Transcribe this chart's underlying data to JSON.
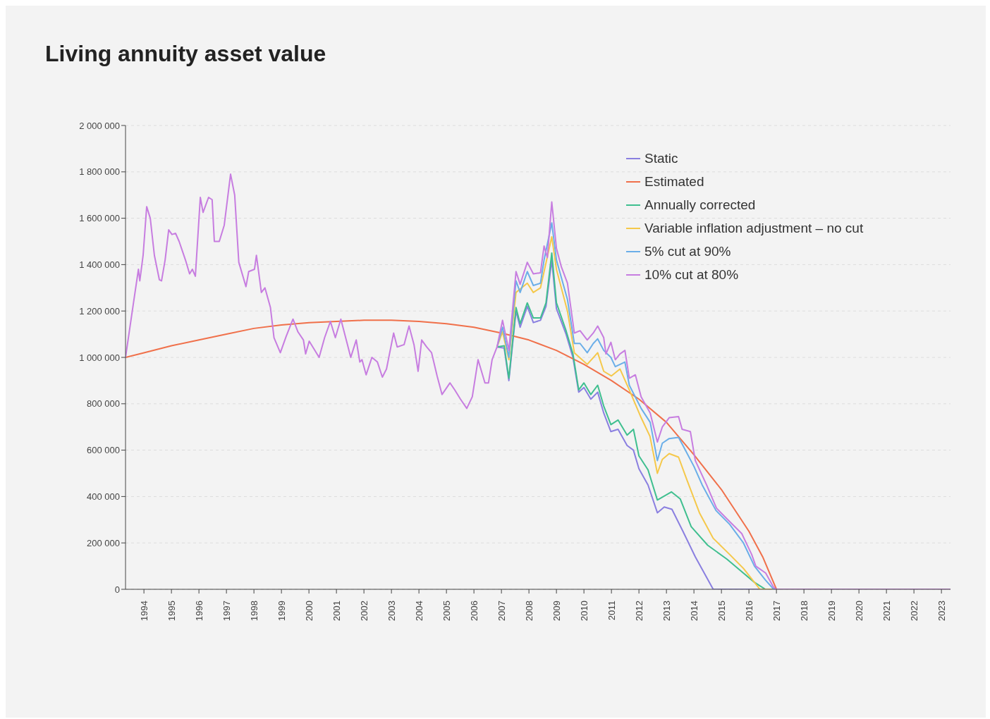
{
  "chart_data": {
    "type": "line",
    "title": "Living annuity asset value",
    "xlim": [
      1993.33,
      2023.33
    ],
    "xticks": [
      1994,
      1995,
      1996,
      1997,
      1998,
      1999,
      2000,
      2001,
      2002,
      2003,
      2004,
      2005,
      2006,
      2007,
      2008,
      2009,
      2010,
      2011,
      2012,
      2013,
      2014,
      2015,
      2016,
      2017,
      2018,
      2019,
      2020,
      2021,
      2022,
      2023
    ],
    "ylim": [
      0,
      2000000
    ],
    "yticks": [
      0,
      {
        "value": 200000,
        "label": "200 000"
      },
      {
        "value": 400000,
        "label": "400 000"
      },
      {
        "value": 600000,
        "label": "600 000"
      },
      {
        "value": 800000,
        "label": "800 000"
      },
      {
        "value": 1000000,
        "label": "1 000 000"
      },
      {
        "value": 1200000,
        "label": "1 200 000"
      },
      {
        "value": 1400000,
        "label": "1 400 000"
      },
      {
        "value": 1600000,
        "label": "1 600 000"
      },
      {
        "value": 1800000,
        "label": "1 800 000"
      },
      {
        "value": 2000000,
        "label": "2 000 000"
      }
    ],
    "grid": "y",
    "legend": "top right",
    "marker": "none",
    "line_style": "solid",
    "series": [
      {
        "name": "Static",
        "color": "#8a7fe0",
        "x": [
          2006.84,
          2007.1,
          2007.27,
          2007.53,
          2007.68,
          2007.94,
          2008.16,
          2008.42,
          2008.62,
          2008.83,
          2009.0,
          2009.35,
          2009.6,
          2009.81,
          2010.0,
          2010.25,
          2010.5,
          2010.72,
          2010.98,
          2011.24,
          2011.57,
          2011.8,
          2012.0,
          2012.33,
          2012.67,
          2012.92,
          2013.2,
          2013.6,
          2014.05,
          2014.7,
          2023.33
        ],
        "values": [
          1045000,
          1040000,
          900000,
          1200000,
          1130000,
          1220000,
          1150000,
          1160000,
          1220000,
          1420000,
          1210000,
          1100000,
          1000000,
          850000,
          870000,
          820000,
          850000,
          760000,
          680000,
          690000,
          620000,
          600000,
          520000,
          450000,
          330000,
          355000,
          345000,
          250000,
          140000,
          0,
          0
        ]
      },
      {
        "name": "Estimated",
        "color": "#f0704a",
        "x": [
          1993.33,
          1994,
          1995,
          1996,
          1997,
          1998,
          1999,
          2000,
          2001,
          2002,
          2003,
          2004,
          2005,
          2006,
          2007,
          2008,
          2009,
          2010,
          2011,
          2012,
          2013,
          2014,
          2015,
          2016,
          2016.5,
          2017,
          2023.33
        ],
        "values": [
          1000000,
          1020000,
          1050000,
          1075000,
          1100000,
          1125000,
          1140000,
          1150000,
          1155000,
          1160000,
          1160000,
          1155000,
          1145000,
          1130000,
          1105000,
          1075000,
          1030000,
          970000,
          900000,
          820000,
          720000,
          580000,
          430000,
          250000,
          140000,
          0,
          0
        ]
      },
      {
        "name": "Annually corrected",
        "color": "#3fbf8f",
        "x": [
          2006.84,
          2007.1,
          2007.27,
          2007.53,
          2007.68,
          2007.94,
          2008.16,
          2008.42,
          2008.62,
          2008.83,
          2009.0,
          2009.35,
          2009.6,
          2009.81,
          2010.0,
          2010.25,
          2010.5,
          2010.72,
          2010.98,
          2011.24,
          2011.57,
          2011.8,
          2012.0,
          2012.33,
          2012.67,
          2013.18,
          2013.5,
          2013.9,
          2014.5,
          2015.2,
          2015.7,
          2016.2,
          2016.6,
          2023.33
        ],
        "values": [
          1045000,
          1050000,
          910000,
          1215000,
          1145000,
          1235000,
          1170000,
          1170000,
          1235000,
          1450000,
          1235000,
          1115000,
          1015000,
          860000,
          890000,
          840000,
          880000,
          790000,
          710000,
          730000,
          665000,
          690000,
          575000,
          515000,
          385000,
          420000,
          390000,
          270000,
          190000,
          130000,
          80000,
          30000,
          0,
          0
        ]
      },
      {
        "name": "Variable inflation adjustment – no cut",
        "color": "#f5c84a",
        "x": [
          2006.84,
          2007.04,
          2007.27,
          2007.53,
          2007.94,
          2008.16,
          2008.42,
          2008.83,
          2009.0,
          2009.4,
          2009.65,
          2010.12,
          2010.5,
          2010.72,
          2011.0,
          2011.31,
          2011.65,
          2012.08,
          2012.4,
          2012.67,
          2012.85,
          2013.1,
          2013.44,
          2013.75,
          2014.2,
          2014.7,
          2015.3,
          2015.8,
          2016.2,
          2016.4,
          2023.33
        ],
        "values": [
          1045000,
          1110000,
          990000,
          1280000,
          1320000,
          1280000,
          1300000,
          1520000,
          1380000,
          1200000,
          1020000,
          970000,
          1020000,
          940000,
          920000,
          950000,
          860000,
          740000,
          660000,
          500000,
          560000,
          585000,
          570000,
          470000,
          330000,
          220000,
          150000,
          90000,
          30000,
          0,
          0
        ]
      },
      {
        "name": "5% cut at 90%",
        "color": "#6aaee8",
        "x": [
          2006.84,
          2007.04,
          2007.27,
          2007.53,
          2007.68,
          2007.94,
          2008.16,
          2008.42,
          2008.55,
          2008.83,
          2009.0,
          2009.4,
          2009.65,
          2009.86,
          2010.12,
          2010.34,
          2010.5,
          2010.72,
          2010.98,
          2011.14,
          2011.49,
          2011.65,
          2012.08,
          2012.41,
          2012.67,
          2012.85,
          2013.1,
          2013.44,
          2013.6,
          2014.0,
          2014.3,
          2014.8,
          2015.3,
          2015.8,
          2016.2,
          2016.6,
          2016.9,
          2023.33
        ],
        "values": [
          1045000,
          1130000,
          1000000,
          1330000,
          1280000,
          1370000,
          1310000,
          1320000,
          1420000,
          1580000,
          1420000,
          1250000,
          1060000,
          1060000,
          1020000,
          1060000,
          1080000,
          1030000,
          1000000,
          960000,
          980000,
          880000,
          780000,
          720000,
          555000,
          630000,
          650000,
          655000,
          620000,
          530000,
          450000,
          340000,
          280000,
          200000,
          100000,
          40000,
          0,
          0
        ]
      },
      {
        "name": "10% cut at 80%",
        "color": "#c77de0",
        "x": [
          1993.33,
          1993.62,
          1993.8,
          1993.85,
          1993.97,
          1994.1,
          1994.23,
          1994.38,
          1994.56,
          1994.64,
          1994.77,
          1994.9,
          1995.02,
          1995.15,
          1995.28,
          1995.51,
          1995.66,
          1995.76,
          1995.87,
          1996.05,
          1996.15,
          1996.35,
          1996.48,
          1996.56,
          1996.74,
          1996.92,
          1997.15,
          1997.3,
          1997.45,
          1997.71,
          1997.81,
          1998.02,
          1998.09,
          1998.27,
          1998.4,
          1998.6,
          1998.73,
          1998.96,
          1999.17,
          1999.42,
          1999.6,
          1999.8,
          1999.88,
          2000.01,
          2000.14,
          2000.37,
          2000.57,
          2000.78,
          2000.96,
          2001.16,
          2001.39,
          2001.52,
          2001.72,
          2001.85,
          2001.93,
          2002.08,
          2002.29,
          2002.49,
          2002.67,
          2002.82,
          2003.08,
          2003.21,
          2003.46,
          2003.64,
          2003.82,
          2003.97,
          2004.1,
          2004.28,
          2004.46,
          2004.66,
          2004.84,
          2005.13,
          2005.3,
          2005.51,
          2005.74,
          2005.94,
          2006.15,
          2006.4,
          2006.53,
          2006.66,
          2006.84,
          2007.04,
          2007.27,
          2007.53,
          2007.68,
          2007.94,
          2008.16,
          2008.42,
          2008.55,
          2008.67,
          2008.83,
          2009.0,
          2009.18,
          2009.4,
          2009.65,
          2009.86,
          2010.12,
          2010.34,
          2010.5,
          2010.72,
          2010.8,
          2010.98,
          2011.14,
          2011.31,
          2011.49,
          2011.65,
          2011.87,
          2012.08,
          2012.41,
          2012.67,
          2012.85,
          2013.1,
          2013.44,
          2013.57,
          2013.87,
          2014.05,
          2014.46,
          2014.82,
          2015.23,
          2015.74,
          2016.1,
          2016.25,
          2016.61,
          2016.89,
          2016.99,
          2023.33
        ],
        "values": [
          1000000,
          1235000,
          1380000,
          1330000,
          1440000,
          1650000,
          1600000,
          1440000,
          1335000,
          1330000,
          1420000,
          1550000,
          1530000,
          1535000,
          1500000,
          1420000,
          1360000,
          1380000,
          1350000,
          1690000,
          1625000,
          1690000,
          1680000,
          1500000,
          1500000,
          1570000,
          1790000,
          1700000,
          1410000,
          1305000,
          1370000,
          1380000,
          1440000,
          1280000,
          1300000,
          1215000,
          1085000,
          1020000,
          1090000,
          1165000,
          1110000,
          1075000,
          1015000,
          1070000,
          1045000,
          1000000,
          1085000,
          1155000,
          1085000,
          1165000,
          1060000,
          1000000,
          1075000,
          980000,
          990000,
          925000,
          1000000,
          980000,
          915000,
          950000,
          1105000,
          1045000,
          1055000,
          1135000,
          1055000,
          940000,
          1075000,
          1045000,
          1020000,
          920000,
          840000,
          890000,
          860000,
          820000,
          780000,
          830000,
          990000,
          890000,
          890000,
          990000,
          1045000,
          1160000,
          1030000,
          1370000,
          1315000,
          1410000,
          1360000,
          1365000,
          1480000,
          1430000,
          1670000,
          1470000,
          1390000,
          1320000,
          1105000,
          1115000,
          1075000,
          1105000,
          1135000,
          1085000,
          1015000,
          1065000,
          990000,
          1015000,
          1030000,
          910000,
          925000,
          830000,
          760000,
          635000,
          700000,
          740000,
          745000,
          690000,
          680000,
          555000,
          450000,
          350000,
          300000,
          240000,
          150000,
          100000,
          70000,
          10000,
          0,
          0
        ]
      }
    ]
  }
}
